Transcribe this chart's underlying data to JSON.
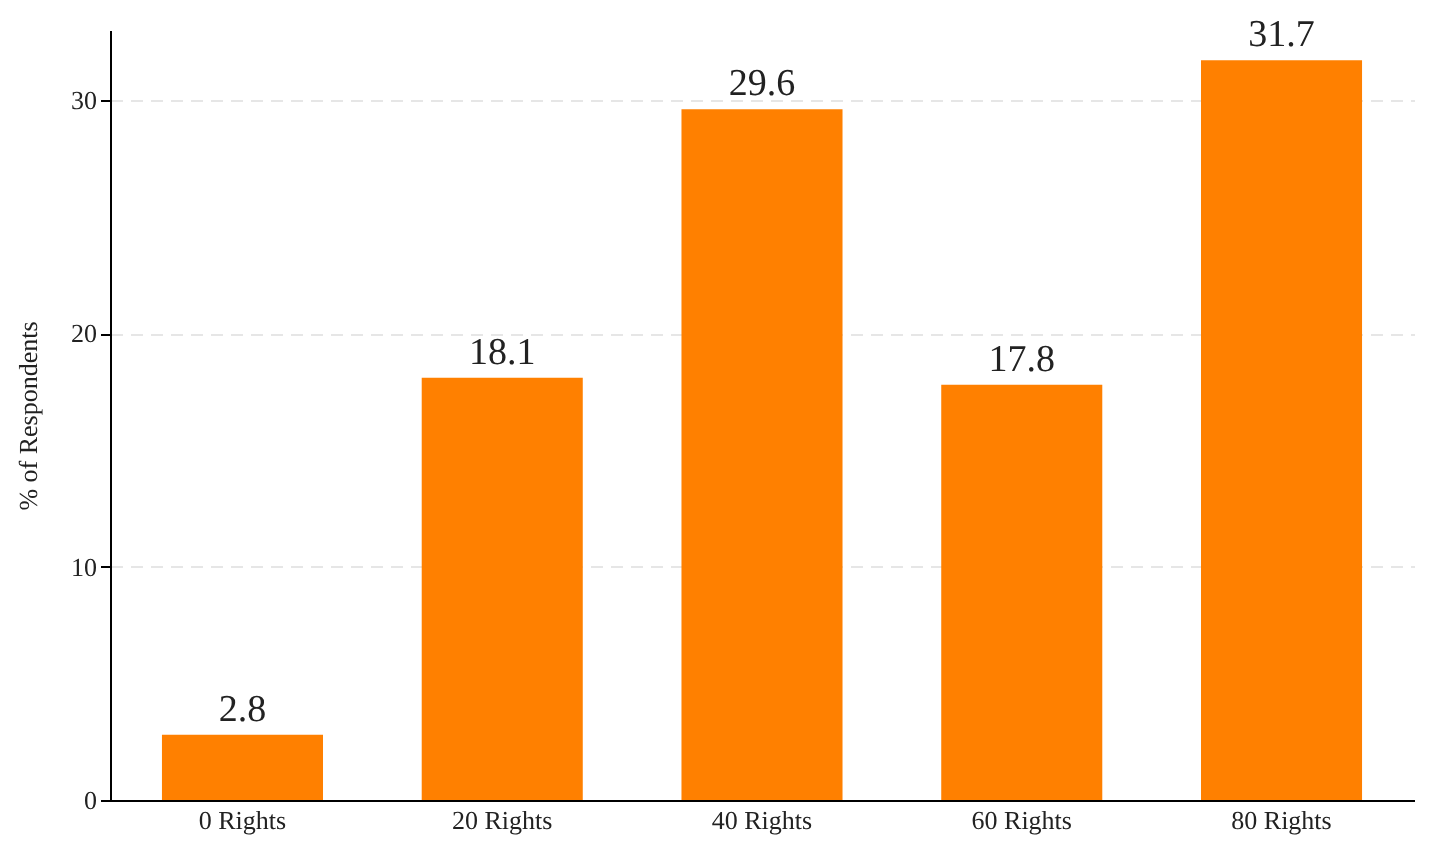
{
  "chart_data": {
    "type": "bar",
    "ylabel": "% of Respondents",
    "categories": [
      "0 Rights",
      "20 Rights",
      "40 Rights",
      "60 Rights",
      "80 Rights"
    ],
    "values": [
      2.8,
      18.1,
      29.6,
      17.8,
      31.7
    ],
    "color": "#ff8000",
    "ylim": [
      0,
      33
    ],
    "yticks": [
      0,
      10,
      20,
      30
    ],
    "grid": "y",
    "data_labels": true
  }
}
